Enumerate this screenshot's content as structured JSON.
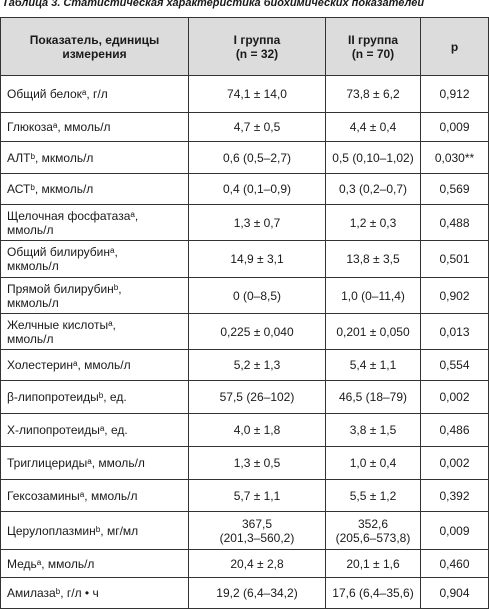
{
  "title": "Таблица 3. Статистическая характеристика биохимических показателей",
  "table": {
    "header": [
      "Показатель, единицы\nизмерения",
      "I группа\n(n = 32)",
      "II группа\n(n = 70)",
      "p"
    ],
    "rows": [
      [
        "Общий белокᵃ, г/л",
        "74,1 ± 14,0",
        "73,8 ± 6,2",
        "0,912"
      ],
      [
        "Глюкозаᵃ, ммоль/л",
        "4,7 ± 0,5",
        "4,4 ± 0,4",
        "0,009"
      ],
      [
        "АЛТᵇ, мкмоль/л",
        "0,6 (0,5–2,7)",
        "0,5 (0,10–1,02)",
        "0,030**"
      ],
      [
        "АСТᵇ, мкмоль/л",
        "0,4 (0,1–0,9)",
        "0,3 (0,2–0,7)",
        "0,569"
      ],
      [
        "Щелочная фосфатазаᵃ,\nммоль/л",
        "1,3 ± 0,7",
        "1,2 ± 0,3",
        "0,488"
      ],
      [
        "Общий билирубинᵃ,\nмкмоль/л",
        "14,9 ± 3,1",
        "13,8 ± 3,5",
        "0,501"
      ],
      [
        "Прямой билирубинᵇ,\nмкмоль/л",
        "0 (0–8,5)",
        "1,0 (0–11,4)",
        "0,902"
      ],
      [
        "Желчные кислотыᵃ,\nммоль/л",
        "0,225 ± 0,040",
        "0,201 ± 0,050",
        "0,013"
      ],
      [
        "Холестеринᵃ, ммоль/л",
        "5,2 ± 1,3",
        "5,4 ± 1,1",
        "0,554"
      ],
      [
        "β-липопротеидыᵇ, ед.",
        "57,5 (26–102)",
        "46,5 (18–79)",
        "0,002"
      ],
      [
        "Х-липопротеидыᵃ, ед.",
        "4,0 ± 1,8",
        "3,8 ± 1,5",
        "0,486"
      ],
      [
        "Триглицеридыᵃ, ммоль/л",
        "1,3 ± 0,5",
        "1,0 ± 0,4",
        "0,002"
      ],
      [
        "Гексозаминыᵃ, ммоль/л",
        "5,7 ± 1,1",
        "5,5 ± 1,2",
        "0,392"
      ],
      [
        "Церулоплазминᵇ, мг/мл",
        "367,5\n(201,3–560,2)",
        "352,6\n(205,6–573,8)",
        "0,009"
      ],
      [
        "Медьᵃ, ммоль/л",
        "20,4 ± 2,8",
        "20,1 ± 1,6",
        "0,460"
      ],
      [
        "Амилазаᵇ, г/л • ч",
        "19,2 (6,4–34,2)",
        "17,6 (6,4–35,6)",
        "0,904"
      ]
    ]
  }
}
